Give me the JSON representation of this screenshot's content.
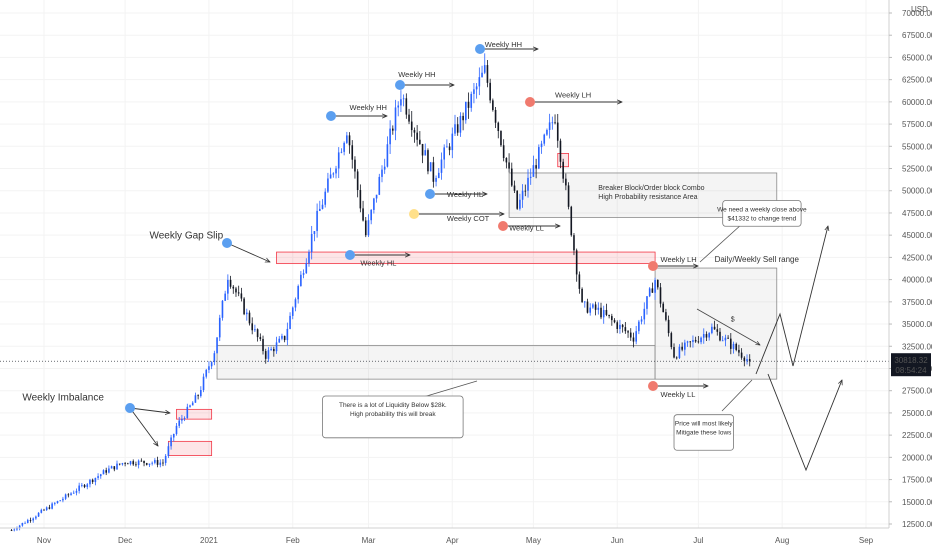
{
  "chart_data": {
    "type": "candlestick",
    "currency": "USD",
    "ylim": [
      11500,
      71000
    ],
    "y_ticks": [
      "12500.00",
      "15000.00",
      "17500.00",
      "20000.00",
      "22500.00",
      "25000.00",
      "27500.00",
      "30000.00",
      "32500.00",
      "35000.00",
      "37500.00",
      "40000.00",
      "42500.00",
      "45000.00",
      "47500.00",
      "50000.00",
      "52500.00",
      "55000.00",
      "57500.00",
      "60000.00",
      "62500.00",
      "65000.00",
      "67500.00",
      "70000.00"
    ],
    "x_labels": [
      "Nov",
      "Dec",
      "2021",
      "Feb",
      "Mar",
      "Apr",
      "May",
      "Jun",
      "Jul",
      "Aug",
      "Sep"
    ],
    "x_label_dates": [
      "2020-11-01",
      "2020-12-01",
      "2021-01-01",
      "2021-02-01",
      "2021-03-01",
      "2021-04-01",
      "2021-05-01",
      "2021-06-01",
      "2021-07-01",
      "2021-08-01",
      "2021-09-01"
    ],
    "price_label": {
      "price": 30818.32,
      "text": "30818.32",
      "countdown": "08:54:24"
    },
    "colors": {
      "up": "#2962ff",
      "down": "#131722",
      "zone_red": "#f23645",
      "zone_grey": "#9e9e9e",
      "blue_dot": "#5b9ff0",
      "red_dot": "#f07a6e",
      "yellow_dot": "#ffe08a"
    },
    "ohlc_keypoints": [
      [
        "2020-10-20",
        11800
      ],
      [
        "2020-11-05",
        14800
      ],
      [
        "2020-11-24",
        18500
      ],
      [
        "2020-12-01",
        19500
      ],
      [
        "2020-12-15",
        19400
      ],
      [
        "2020-12-20",
        23500
      ],
      [
        "2020-12-28",
        27000
      ],
      [
        "2021-01-03",
        32000
      ],
      [
        "2021-01-08",
        40500
      ],
      [
        "2021-01-22",
        31500
      ],
      [
        "2021-01-29",
        33500
      ],
      [
        "2021-02-09",
        46000
      ],
      [
        "2021-02-21",
        57000
      ],
      [
        "2021-02-28",
        45000
      ],
      [
        "2021-03-13",
        61000
      ],
      [
        "2021-03-25",
        51500
      ],
      [
        "2021-04-13",
        63500
      ],
      [
        "2021-04-25",
        48000
      ],
      [
        "2021-05-09",
        58500
      ],
      [
        "2021-05-19",
        37000
      ],
      [
        "2021-05-25",
        36500
      ],
      [
        "2021-06-07",
        33500
      ],
      [
        "2021-06-15",
        40000
      ],
      [
        "2021-06-22",
        31500
      ],
      [
        "2021-07-06",
        34500
      ],
      [
        "2021-07-20",
        30818
      ]
    ],
    "zones": [
      {
        "type": "red",
        "date_from": "2020-12-20",
        "date_to": "2021-01-02",
        "price_from": 24300,
        "price_to": 25400
      },
      {
        "type": "red",
        "date_from": "2020-12-17",
        "date_to": "2021-01-02",
        "price_from": 20200,
        "price_to": 21800
      },
      {
        "type": "red",
        "date_from": "2021-01-26",
        "date_to": "2021-06-15",
        "price_from": 41800,
        "price_to": 43100
      },
      {
        "type": "red",
        "date_from": "2021-05-10",
        "date_to": "2021-05-14",
        "price_from": 52700,
        "price_to": 54200
      },
      {
        "type": "grey",
        "date_from": "2021-04-22",
        "date_to": "2021-07-30",
        "price_from": 47000,
        "price_to": 52000
      },
      {
        "type": "grey",
        "date_from": "2021-01-04",
        "date_to": "2021-06-15",
        "price_from": 28800,
        "price_to": 32600
      },
      {
        "type": "grey",
        "date_from": "2021-06-15",
        "date_to": "2021-07-30",
        "price_from": 28800,
        "price_to": 41300
      }
    ],
    "annotations": [
      {
        "text": "Weekly Imbalance",
        "date": "2020-10-24",
        "price": 26400,
        "size": 10
      },
      {
        "text": "Weekly Gap Slip",
        "date": "2020-12-10",
        "price": 44600,
        "size": 10
      },
      {
        "text": "Weekly HH",
        "date": "2021-02-22",
        "price": 59100,
        "size": 7.5
      },
      {
        "text": "Weekly HH",
        "date": "2021-03-12",
        "price": 62800,
        "size": 7.5
      },
      {
        "text": "Weekly HH",
        "date": "2021-04-13",
        "price": 66200,
        "size": 7.5
      },
      {
        "text": "Weekly LH",
        "date": "2021-05-09",
        "price": 60500,
        "size": 7.5
      },
      {
        "text": "Weekly HL",
        "date": "2021-03-30",
        "price": 49300,
        "size": 7.5
      },
      {
        "text": "Weekly COT",
        "date": "2021-03-30",
        "price": 46600,
        "size": 7.5
      },
      {
        "text": "Weekly LL",
        "date": "2021-04-22",
        "price": 45500,
        "size": 7.5
      },
      {
        "text": "Weekly HL",
        "date": "2021-02-26",
        "price": 41600,
        "size": 7.5
      },
      {
        "text": "Weekly LH",
        "date": "2021-06-17",
        "price": 42000,
        "size": 7.5
      },
      {
        "text": "Weekly LL",
        "date": "2021-06-17",
        "price": 26800,
        "size": 7.5
      },
      {
        "text": "Daily/Weekly Sell range",
        "date": "2021-07-07",
        "price": 42000,
        "size": 8
      },
      {
        "text": "Breaker Block/Order block Combo",
        "date": "2021-05-25",
        "price": 50100,
        "size": 7
      },
      {
        "text": "High Probability resistance Area",
        "date": "2021-05-25",
        "price": 49050,
        "size": 7
      },
      {
        "text": "$",
        "date": "2021-07-13",
        "price": 35300,
        "size": 7
      }
    ],
    "callouts": [
      {
        "lines": [
          "We need a weekly close above",
          "$41332 to change trend"
        ],
        "date_from": "2021-07-10",
        "date_to": "2021-08-08",
        "price_from": 46000,
        "price_to": 48900
      },
      {
        "lines": [
          "There is a lot of Liquidity Below $28k.",
          " High probability this will break"
        ],
        "date_from": "2021-02-12",
        "date_to": "2021-04-05",
        "price_from": 22200,
        "price_to": 26900
      },
      {
        "lines": [
          "Price will most likely",
          "Mitigate these lows"
        ],
        "date_from": "2021-06-22",
        "date_to": "2021-07-14",
        "price_from": 20800,
        "price_to": 24800
      }
    ]
  }
}
